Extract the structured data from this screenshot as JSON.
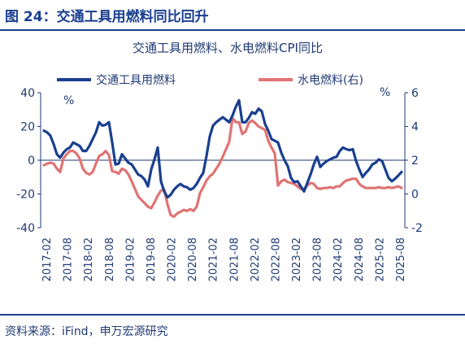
{
  "figure": {
    "title": "图 24：交通工具用燃料同比回升",
    "source": "资料来源：iFind，申万宏源研究"
  },
  "chart_data": {
    "type": "line",
    "title": "交通工具用燃料、水电燃料CPI同比",
    "x_tick_labels": [
      "2017-02",
      "2017-08",
      "2018-02",
      "2018-08",
      "2019-02",
      "2019-08",
      "2020-02",
      "2020-08",
      "2021-02",
      "2021-08",
      "2022-02",
      "2022-08",
      "2023-02",
      "2023-08",
      "2024-02",
      "2024-08",
      "2025-02",
      "2025-08"
    ],
    "y_left": {
      "unit": "%",
      "ylim": [
        -40,
        40
      ],
      "ticks": [
        -40,
        -20,
        0,
        20,
        40
      ]
    },
    "y_right": {
      "unit": "%",
      "ylim": [
        -2,
        6
      ],
      "ticks": [
        -2,
        0,
        2,
        4,
        6
      ]
    },
    "legend_position": "top",
    "grid": false,
    "series": [
      {
        "name": "交通工具用燃料",
        "axis": "left",
        "color": "#1a3f8f",
        "values": [
          17.5,
          16.5,
          14.5,
          9.5,
          3.5,
          1.5,
          4.5,
          6.5,
          7.5,
          10.5,
          9.5,
          8.5,
          5.5,
          5.5,
          8.5,
          12.5,
          16.5,
          22.5,
          20.5,
          21.0,
          22.5,
          10.5,
          -2.5,
          -2.0,
          3.5,
          1.0,
          -1.5,
          -2.5,
          -5.5,
          -8.5,
          -9.5,
          -11.5,
          -15.5,
          -5.5,
          0.5,
          7.5,
          -12.5,
          -18.5,
          -22.0,
          -20.5,
          -17.5,
          -15.5,
          -14.0,
          -15.5,
          -16.0,
          -17.5,
          -16.5,
          -14.0,
          -10.5,
          -7.5,
          2.5,
          14.0,
          20.5,
          22.5,
          24.0,
          25.5,
          24.0,
          22.5,
          26.5,
          31.5,
          35.5,
          22.5,
          22.5,
          25.0,
          28.5,
          27.5,
          30.5,
          29.0,
          21.5,
          17.5,
          12.5,
          11.5,
          10.5,
          4.5,
          0.0,
          -3.5,
          -10.5,
          -13.0,
          -12.5,
          -15.5,
          -18.5,
          -13.5,
          -8.5,
          -2.5,
          2.0,
          -4.0,
          -2.0,
          -0.5,
          0.5,
          1.5,
          2.0,
          5.5,
          7.5,
          6.5,
          6.0,
          6.5,
          -0.5,
          -5.5,
          -10.0,
          -7.5,
          -5.5,
          -2.5,
          -1.5,
          0.5,
          -0.5,
          -5.5,
          -10.5,
          -12.5,
          -11.0,
          -9.0,
          -7.0
        ]
      },
      {
        "name": "水电燃料(右)",
        "axis": "right",
        "color": "#e07474",
        "values": [
          1.7,
          1.8,
          1.85,
          1.8,
          1.5,
          1.3,
          2.1,
          2.35,
          2.55,
          2.55,
          2.4,
          2.1,
          1.5,
          1.25,
          1.15,
          1.3,
          1.8,
          2.25,
          2.35,
          2.55,
          2.3,
          1.35,
          1.3,
          1.2,
          1.5,
          1.4,
          1.15,
          0.75,
          0.3,
          -0.15,
          -0.35,
          -0.55,
          -0.75,
          -0.85,
          -0.5,
          -0.1,
          0.2,
          0.25,
          -0.6,
          -1.25,
          -1.35,
          -1.15,
          -1.05,
          -0.95,
          -1.0,
          -0.9,
          -1.0,
          -0.75,
          0.05,
          0.4,
          0.8,
          1.05,
          1.2,
          1.5,
          1.8,
          2.2,
          2.65,
          3.1,
          4.5,
          4.25,
          4.25,
          3.55,
          3.7,
          4.2,
          4.35,
          4.2,
          4.0,
          3.9,
          3.8,
          3.15,
          2.75,
          2.4,
          0.5,
          0.75,
          0.85,
          0.7,
          0.65,
          0.6,
          0.45,
          0.3,
          0.3,
          0.5,
          0.65,
          0.6,
          0.35,
          0.3,
          0.35,
          0.35,
          0.4,
          0.35,
          0.45,
          0.45,
          0.65,
          0.8,
          0.85,
          0.9,
          0.9,
          0.6,
          0.45,
          0.35,
          0.35,
          0.35,
          0.35,
          0.4,
          0.35,
          0.35,
          0.4,
          0.35,
          0.4,
          0.45,
          0.35
        ]
      }
    ]
  }
}
